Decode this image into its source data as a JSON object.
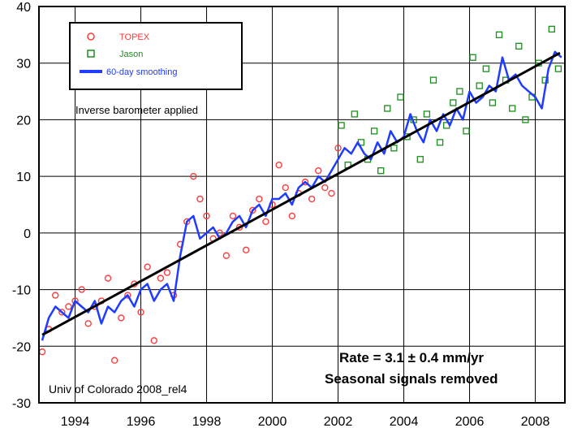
{
  "chart_data": {
    "type": "scatter",
    "xlim": [
      1992.9,
      2008.9
    ],
    "ylim": [
      -30,
      40
    ],
    "x_ticks": [
      1994,
      1996,
      1998,
      2000,
      2002,
      2004,
      2006,
      2008
    ],
    "y_ticks": [
      -30,
      -20,
      -10,
      0,
      10,
      20,
      30,
      40
    ],
    "grid": true,
    "legend_placement": "top-left",
    "legend": [
      {
        "label": "TOPEX",
        "color": "#ff3b3b",
        "marker": "circle"
      },
      {
        "label": "Jason",
        "color": "#1a8f1a",
        "marker": "square"
      },
      {
        "label": "60-day smoothing",
        "color": "#1f3cff",
        "marker": "line"
      }
    ],
    "annotations": {
      "barometer": "Inverse barometer applied",
      "rate": "Rate = 3.1 ± 0.4 mm/yr",
      "seasonal": "Seasonal signals removed",
      "source": "Univ of Colorado 2008_rel4"
    },
    "trend": {
      "x": [
        1993.0,
        2008.75
      ],
      "y": [
        -18.0,
        31.8
      ]
    },
    "series": [
      {
        "name": "TOPEX",
        "x": [
          1993.0,
          1993.2,
          1993.4,
          1993.6,
          1993.8,
          1994.0,
          1994.2,
          1994.4,
          1994.6,
          1994.8,
          1995.0,
          1995.2,
          1995.4,
          1995.6,
          1995.8,
          1996.0,
          1996.2,
          1996.4,
          1996.6,
          1996.8,
          1997.0,
          1997.2,
          1997.4,
          1997.6,
          1997.8,
          1998.0,
          1998.2,
          1998.4,
          1998.6,
          1998.8,
          1999.0,
          1999.2,
          1999.4,
          1999.6,
          1999.8,
          2000.0,
          2000.2,
          2000.4,
          2000.6,
          2000.8,
          2001.0,
          2001.2,
          2001.4,
          2001.6,
          2001.8,
          2002.0
        ],
        "y": [
          -21,
          -17,
          -11,
          -14,
          -13,
          -12,
          -10,
          -16,
          -13,
          -12,
          -8,
          -22.5,
          -15,
          -11,
          -9,
          -14,
          -6,
          -19,
          -8,
          -7,
          -11,
          -2,
          2,
          10,
          6,
          3,
          -1,
          0,
          -4,
          3,
          1,
          -3,
          4,
          6,
          2,
          5,
          12,
          8,
          3,
          7,
          9,
          6,
          11,
          8,
          7,
          15
        ]
      },
      {
        "name": "Jason",
        "x": [
          2002.1,
          2002.3,
          2002.5,
          2002.7,
          2002.9,
          2003.1,
          2003.3,
          2003.5,
          2003.7,
          2003.9,
          2004.1,
          2004.3,
          2004.5,
          2004.7,
          2004.9,
          2005.1,
          2005.3,
          2005.5,
          2005.7,
          2005.9,
          2006.1,
          2006.3,
          2006.5,
          2006.7,
          2006.9,
          2007.1,
          2007.3,
          2007.5,
          2007.7,
          2007.9,
          2008.1,
          2008.3,
          2008.5,
          2008.7
        ],
        "y": [
          19,
          12,
          21,
          16,
          13,
          18,
          11,
          22,
          15,
          24,
          17,
          20,
          13,
          21,
          27,
          16,
          19,
          23,
          25,
          18,
          31,
          26,
          29,
          23,
          35,
          27,
          22,
          33,
          20,
          24,
          30,
          27,
          36,
          29
        ]
      },
      {
        "name": "60-day smoothing",
        "x": [
          1993.0,
          1993.2,
          1993.4,
          1993.6,
          1993.8,
          1994.0,
          1994.2,
          1994.4,
          1994.6,
          1994.8,
          1995.0,
          1995.2,
          1995.4,
          1995.6,
          1995.8,
          1996.0,
          1996.2,
          1996.4,
          1996.6,
          1996.8,
          1997.0,
          1997.2,
          1997.4,
          1997.6,
          1997.8,
          1998.0,
          1998.2,
          1998.4,
          1998.6,
          1998.8,
          1999.0,
          1999.2,
          1999.4,
          1999.6,
          1999.8,
          2000.0,
          2000.2,
          2000.4,
          2000.6,
          2000.8,
          2001.0,
          2001.2,
          2001.4,
          2001.6,
          2001.8,
          2002.0,
          2002.2,
          2002.4,
          2002.6,
          2002.8,
          2003.0,
          2003.2,
          2003.4,
          2003.6,
          2003.8,
          2004.0,
          2004.2,
          2004.4,
          2004.6,
          2004.8,
          2005.0,
          2005.2,
          2005.4,
          2005.6,
          2005.8,
          2006.0,
          2006.2,
          2006.4,
          2006.6,
          2006.8,
          2007.0,
          2007.2,
          2007.4,
          2007.6,
          2007.8,
          2008.0,
          2008.2,
          2008.4,
          2008.6,
          2008.8
        ],
        "y": [
          -19,
          -15,
          -13,
          -14,
          -15,
          -12,
          -13,
          -14,
          -12,
          -16,
          -13,
          -14,
          -12,
          -11,
          -13,
          -10,
          -9,
          -12,
          -10,
          -9,
          -12,
          -4,
          2,
          3,
          -1,
          0,
          1,
          -1,
          0,
          2,
          3,
          1,
          4,
          5,
          3,
          6,
          6,
          7,
          5,
          8,
          9,
          8,
          10,
          9,
          11,
          13,
          15,
          14,
          16,
          14,
          13,
          16,
          14,
          18,
          16,
          17,
          21,
          18,
          16,
          20,
          18,
          21,
          19,
          22,
          20,
          25,
          23,
          24,
          26,
          25,
          31,
          27,
          28,
          26,
          25,
          24,
          22,
          29,
          32,
          31
        ]
      }
    ]
  }
}
